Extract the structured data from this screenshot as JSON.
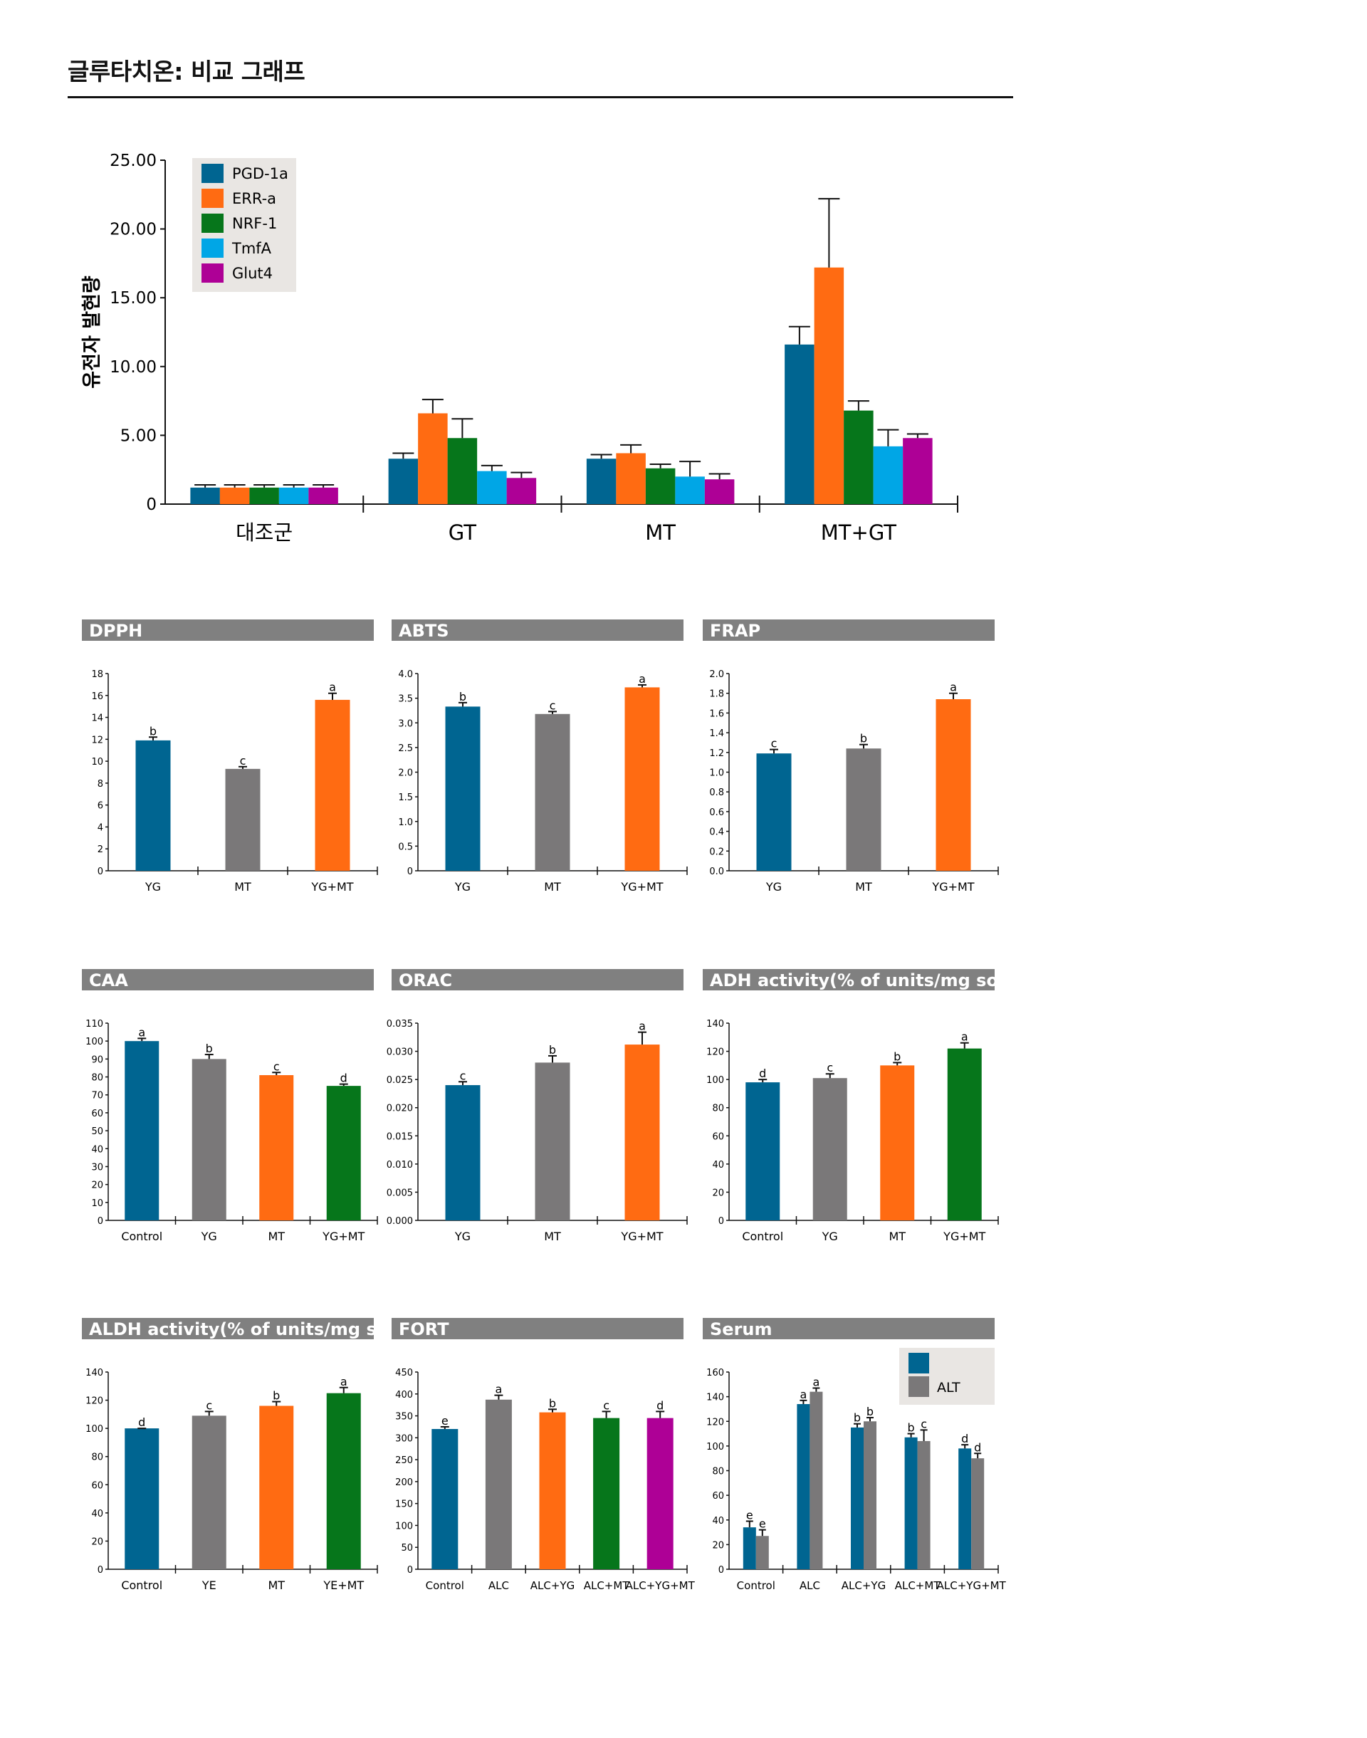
{
  "page": {
    "title": "글루타치온: 비교 그래프"
  },
  "colors": {
    "blue": "#006591",
    "orange": "#ff6b12",
    "green": "#06761b",
    "cyan": "#00a6e6",
    "magenta": "#ae0096",
    "gray": "#7a7879",
    "header": "#808080",
    "legend_bg": "#e9e6e3"
  },
  "chart_data": [
    {
      "id": "gene",
      "type": "bar",
      "title": "",
      "xlabel": "",
      "ylabel": "유전자 발현량",
      "categories": [
        "대조군",
        "GT",
        "MT",
        "MT+GT"
      ],
      "ylim": [
        0,
        25
      ],
      "yticks": [
        "0",
        "5.00",
        "10.00",
        "15.00",
        "20.00",
        "25.00"
      ],
      "legend": "top-left",
      "series": [
        {
          "name": "PGD-1a",
          "color": "#006591",
          "values": [
            1.2,
            3.3,
            3.3,
            11.6
          ],
          "errors": [
            0.2,
            0.4,
            0.3,
            1.3
          ]
        },
        {
          "name": "ERR-a",
          "color": "#ff6b12",
          "values": [
            1.2,
            6.6,
            3.7,
            17.2
          ],
          "errors": [
            0.2,
            1.0,
            0.6,
            5.0
          ]
        },
        {
          "name": "NRF-1",
          "color": "#06761b",
          "values": [
            1.2,
            4.8,
            2.6,
            6.8
          ],
          "errors": [
            0.2,
            1.4,
            0.3,
            0.7
          ]
        },
        {
          "name": "TmfA",
          "color": "#00a6e6",
          "values": [
            1.2,
            2.4,
            2.0,
            4.2
          ],
          "errors": [
            0.2,
            0.4,
            1.1,
            1.2
          ]
        },
        {
          "name": "Glut4",
          "color": "#ae0096",
          "values": [
            1.2,
            1.9,
            1.8,
            4.8
          ],
          "errors": [
            0.2,
            0.4,
            0.4,
            0.3
          ]
        }
      ]
    },
    {
      "id": "dpph",
      "type": "bar",
      "title": "DPPH",
      "categories": [
        "YG",
        "MT",
        "YG+MT"
      ],
      "ylim": [
        0,
        18
      ],
      "yticks": [
        "0",
        "2",
        "4",
        "6",
        "8",
        "10",
        "12",
        "14",
        "16",
        "18"
      ],
      "values": [
        11.9,
        9.3,
        15.6
      ],
      "errors": [
        0.3,
        0.2,
        0.6
      ],
      "letters": [
        "b",
        "c",
        "a"
      ],
      "colors": [
        "#006591",
        "#7a7879",
        "#ff6b12"
      ]
    },
    {
      "id": "abts",
      "type": "bar",
      "title": "ABTS",
      "categories": [
        "YG",
        "MT",
        "YG+MT"
      ],
      "ylim": [
        0,
        4.0
      ],
      "yticks": [
        "0",
        "0.5",
        "1.0",
        "1.5",
        "2.0",
        "2.5",
        "3.0",
        "3.5",
        "4.0"
      ],
      "values": [
        3.33,
        3.18,
        3.72
      ],
      "errors": [
        0.08,
        0.05,
        0.05
      ],
      "letters": [
        "b",
        "c",
        "a"
      ],
      "colors": [
        "#006591",
        "#7a7879",
        "#ff6b12"
      ]
    },
    {
      "id": "frap",
      "type": "bar",
      "title": "FRAP",
      "categories": [
        "YG",
        "MT",
        "YG+MT"
      ],
      "ylim": [
        0,
        2.0
      ],
      "yticks": [
        "0.0",
        "0.2",
        "0.4",
        "0.6",
        "0.8",
        "1.0",
        "1.2",
        "1.4",
        "1.6",
        "1.8",
        "2.0"
      ],
      "values": [
        1.19,
        1.24,
        1.74
      ],
      "errors": [
        0.04,
        0.04,
        0.06
      ],
      "letters": [
        "c",
        "b",
        "a"
      ],
      "colors": [
        "#006591",
        "#7a7879",
        "#ff6b12"
      ]
    },
    {
      "id": "caa",
      "type": "bar",
      "title": "CAA",
      "categories": [
        "Control",
        "YG",
        "MT",
        "YG+MT"
      ],
      "ylim": [
        0,
        110
      ],
      "yticks": [
        "0",
        "10",
        "20",
        "30",
        "40",
        "50",
        "60",
        "70",
        "80",
        "90",
        "100",
        "110"
      ],
      "values": [
        100,
        90,
        81,
        75
      ],
      "errors": [
        1.5,
        2.5,
        1.5,
        1
      ],
      "letters": [
        "a",
        "b",
        "c",
        "d"
      ],
      "colors": [
        "#006591",
        "#7a7879",
        "#ff6b12",
        "#06761b"
      ]
    },
    {
      "id": "orac",
      "type": "bar",
      "title": "ORAC",
      "categories": [
        "YG",
        "MT",
        "YG+MT"
      ],
      "ylim": [
        0,
        0.035
      ],
      "yticks": [
        "0.000",
        "0.005",
        "0.010",
        "0.015",
        "0.020",
        "0.025",
        "0.030",
        "0.035"
      ],
      "values": [
        0.024,
        0.028,
        0.0312
      ],
      "errors": [
        0.0006,
        0.0012,
        0.0022
      ],
      "letters": [
        "c",
        "b",
        "a"
      ],
      "colors": [
        "#006591",
        "#7a7879",
        "#ff6b12"
      ]
    },
    {
      "id": "adh",
      "type": "bar",
      "title": "ADH activity(% of units/mg solid)",
      "categories": [
        "Control",
        "YG",
        "MT",
        "YG+MT"
      ],
      "ylim": [
        0,
        140
      ],
      "yticks": [
        "0",
        "20",
        "40",
        "60",
        "80",
        "100",
        "120",
        "140"
      ],
      "values": [
        98,
        101,
        110,
        122
      ],
      "errors": [
        2,
        3,
        2,
        4
      ],
      "letters": [
        "d",
        "c",
        "b",
        "a"
      ],
      "colors": [
        "#006591",
        "#7a7879",
        "#ff6b12",
        "#06761b"
      ]
    },
    {
      "id": "aldh",
      "type": "bar",
      "title": "ALDH activity(% of units/mg solid)",
      "categories": [
        "Control",
        "YE",
        "MT",
        "YE+MT"
      ],
      "ylim": [
        0,
        140
      ],
      "yticks": [
        "0",
        "20",
        "40",
        "60",
        "80",
        "100",
        "120",
        "140"
      ],
      "values": [
        100,
        109,
        116,
        125
      ],
      "errors": [
        0,
        3,
        3,
        4
      ],
      "letters": [
        "d",
        "c",
        "b",
        "a"
      ],
      "colors": [
        "#006591",
        "#7a7879",
        "#ff6b12",
        "#06761b"
      ]
    },
    {
      "id": "fort",
      "type": "bar",
      "title": "FORT",
      "categories": [
        "Control",
        "ALC",
        "ALC+YG",
        "ALC+MT",
        "ALC+YG+MT"
      ],
      "ylim": [
        0,
        450
      ],
      "yticks": [
        "0",
        "50",
        "100",
        "150",
        "200",
        "250",
        "300",
        "350",
        "400",
        "450"
      ],
      "values": [
        320,
        387,
        358,
        345,
        345
      ],
      "errors": [
        5,
        10,
        7,
        15,
        15
      ],
      "letters": [
        "e",
        "a",
        "b",
        "c",
        "d"
      ],
      "colors": [
        "#006591",
        "#7a7879",
        "#ff6b12",
        "#06761b",
        "#ae0096"
      ]
    },
    {
      "id": "serum",
      "type": "bar",
      "title": "Serum",
      "categories": [
        "Control",
        "ALC",
        "ALC+YG",
        "ALC+MT",
        "ALC+YG+MT"
      ],
      "ylim": [
        0,
        160
      ],
      "yticks": [
        "0",
        "20",
        "40",
        "60",
        "80",
        "100",
        "120",
        "140",
        "160"
      ],
      "legend": "top-right",
      "series": [
        {
          "name": "",
          "color": "#006591",
          "values": [
            34,
            134,
            115,
            107,
            98
          ],
          "errors": [
            5,
            3,
            3,
            3,
            3
          ],
          "letters": [
            "e",
            "a",
            "b",
            "b",
            "d"
          ]
        },
        {
          "name": "ALT",
          "color": "#7a7879",
          "values": [
            27,
            144,
            120,
            104,
            90
          ],
          "errors": [
            5,
            3,
            3,
            9,
            4
          ],
          "letters": [
            "e",
            "a",
            "b",
            "c",
            "d"
          ]
        }
      ]
    }
  ]
}
